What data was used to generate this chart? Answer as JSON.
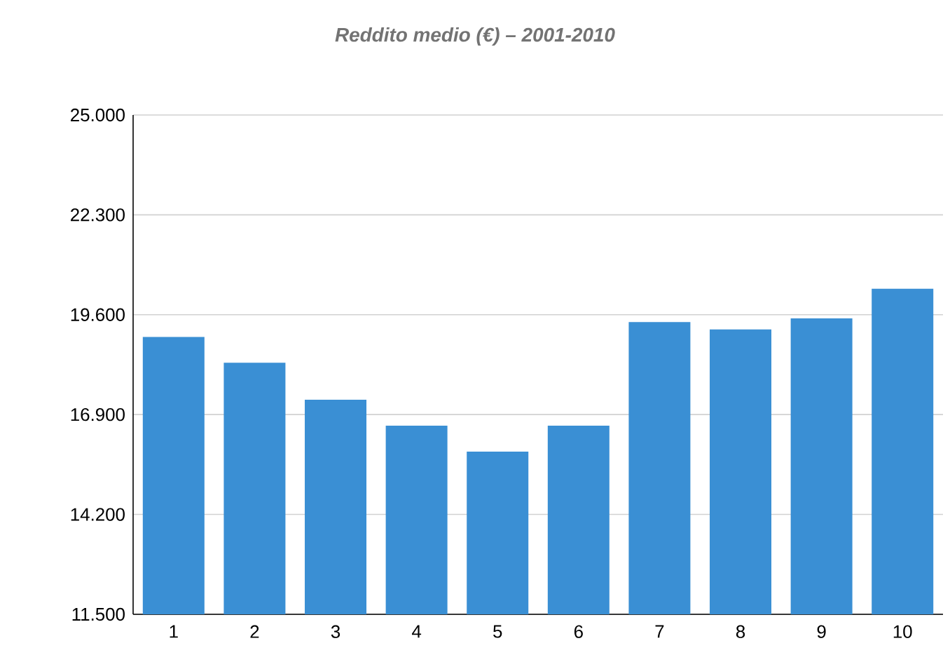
{
  "chart_data": {
    "type": "bar",
    "title": "Reddito medio (€) – 2001-2010",
    "categories": [
      "1",
      "2",
      "3",
      "4",
      "5",
      "6",
      "7",
      "8",
      "9",
      "10"
    ],
    "values": [
      19000,
      18300,
      17300,
      16600,
      15900,
      16600,
      19400,
      19200,
      19500,
      20300
    ],
    "color": "#3a8fd4",
    "ylim": [
      11500,
      25000
    ],
    "yticks": [
      {
        "value": 11500,
        "label": "11.500"
      },
      {
        "value": 14200,
        "label": "14.200"
      },
      {
        "value": 16900,
        "label": "16.900"
      },
      {
        "value": 19600,
        "label": "19.600"
      },
      {
        "value": 22300,
        "label": "22.300"
      },
      {
        "value": 25000,
        "label": "25.000"
      }
    ],
    "grid": "y"
  }
}
